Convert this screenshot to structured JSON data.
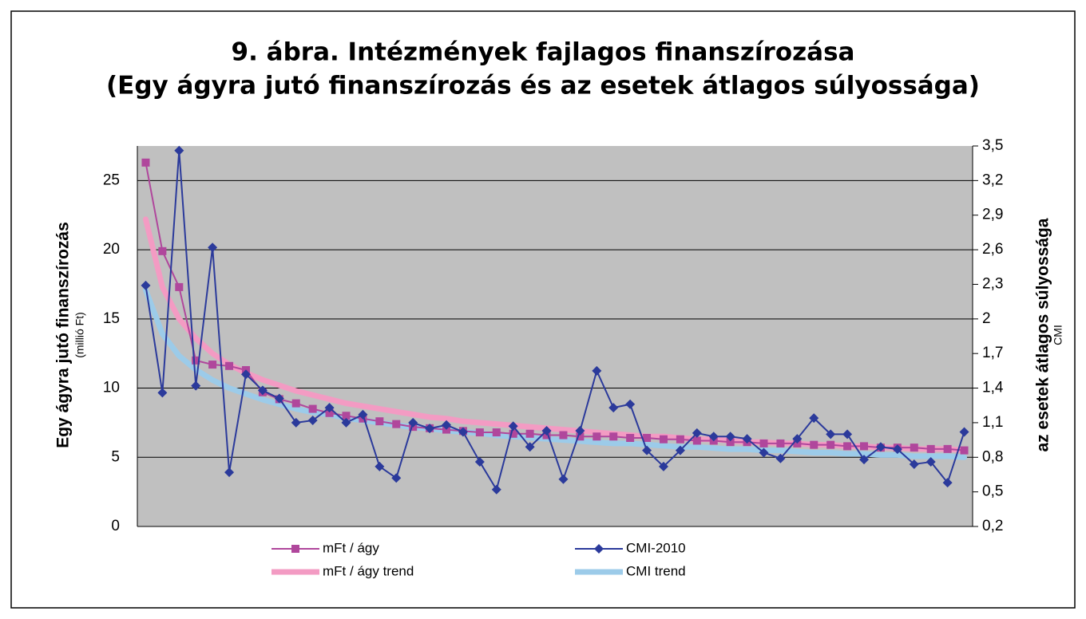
{
  "chart_data": {
    "type": "line",
    "title": "9. ábra. Intézmények fajlagos finanszírozása",
    "subtitle": "(Egy ágyra jutó finanszírozás és az esetek átlagos súlyossága)",
    "y_label": "Egy ágyra jutó finanszírozás",
    "y_unit": "(millió Ft)",
    "y2_label": "az esetek átlagos súlyossága",
    "y2_unit": "CMI",
    "categories": [
      null,
      null,
      null,
      null,
      null,
      null,
      null,
      null,
      null,
      null,
      null,
      null,
      null,
      null,
      null,
      null,
      null,
      null,
      null,
      null,
      null,
      null,
      null,
      null,
      null,
      null,
      null,
      null,
      null,
      null,
      null,
      null,
      null,
      null,
      null,
      null,
      null,
      null,
      null,
      null,
      null,
      null,
      null,
      null,
      null,
      null,
      null,
      null,
      null,
      null
    ],
    "ylim": [
      0,
      27.5
    ],
    "yticks": [
      0,
      5,
      10,
      15,
      20,
      25
    ],
    "y2lim": [
      0.2,
      3.5
    ],
    "y2ticks": [
      {
        "value": 0.2,
        "label": "0,2"
      },
      {
        "value": 0.5,
        "label": "0,5"
      },
      {
        "value": 0.8,
        "label": "0,8"
      },
      {
        "value": 1.1,
        "label": "1,1"
      },
      {
        "value": 1.4,
        "label": "1,4"
      },
      {
        "value": 1.7,
        "label": "1,7"
      },
      {
        "value": 2,
        "label": "2"
      },
      {
        "value": 2.3,
        "label": "2,3"
      },
      {
        "value": 2.6,
        "label": "2,6"
      },
      {
        "value": 2.9,
        "label": "2,9"
      },
      {
        "value": 3.2,
        "label": "3,2"
      },
      {
        "value": 3.5,
        "label": "3,5"
      }
    ],
    "grid": true,
    "plot_background": "#c0c0c0",
    "series": [
      {
        "name": "mFt / ágy",
        "color": "#b0479c",
        "marker": "square",
        "values": [
          26.3,
          19.9,
          17.3,
          12,
          11.7,
          11.6,
          11.3,
          9.7,
          9.2,
          8.9,
          8.5,
          8.2,
          8.0,
          7.8,
          7.6,
          7.4,
          7.2,
          7.1,
          7.0,
          6.9,
          6.8,
          6.8,
          6.7,
          6.7,
          6.6,
          6.6,
          6.5,
          6.5,
          6.5,
          6.4,
          6.4,
          6.3,
          6.3,
          6.2,
          6.2,
          6.1,
          6.1,
          6.0,
          6.0,
          6.0,
          5.9,
          5.9,
          5.8,
          5.8,
          5.7,
          5.7,
          5.7,
          5.6,
          5.6,
          5.5
        ]
      },
      {
        "name": "CMI-2010",
        "color": "#2b3a9b",
        "marker": "diamond",
        "axis": "y2",
        "values": [
          2.29,
          1.36,
          3.46,
          1.42,
          2.62,
          0.67,
          1.52,
          1.38,
          1.31,
          1.1,
          1.12,
          1.23,
          1.1,
          1.17,
          0.72,
          0.62,
          1.1,
          1.05,
          1.08,
          1.02,
          0.76,
          0.52,
          1.07,
          0.89,
          1.03,
          0.61,
          1.03,
          1.55,
          1.23,
          1.26,
          0.86,
          0.72,
          0.86,
          1.01,
          0.98,
          0.98,
          0.96,
          0.84,
          0.79,
          0.96,
          1.14,
          1.0,
          1.0,
          0.78,
          0.89,
          0.87,
          0.74,
          0.76,
          0.58,
          1.02
        ]
      },
      {
        "name": "mFt / ágy trend",
        "color": "#f39bc3",
        "marker": "none",
        "values": [
          22.2,
          17.3,
          15.0,
          13.6,
          12.5,
          11.7,
          11.1,
          10.6,
          10.2,
          9.8,
          9.5,
          9.2,
          8.9,
          8.7,
          8.5,
          8.3,
          8.1,
          7.9,
          7.8,
          7.6,
          7.5,
          7.4,
          7.3,
          7.2,
          7.1,
          7.0,
          6.9,
          6.8,
          6.7,
          6.6,
          6.5,
          6.5,
          6.4,
          6.3,
          6.3,
          6.2,
          6.1,
          6.1,
          6.0,
          6.0,
          5.9,
          5.9,
          5.8,
          5.8,
          5.7,
          5.7,
          5.6,
          5.6,
          5.6,
          5.5
        ]
      },
      {
        "name": "CMI trend",
        "color": "#9ccbe9",
        "marker": "none",
        "axis": "y2",
        "values": [
          2.25,
          1.87,
          1.68,
          1.56,
          1.47,
          1.4,
          1.35,
          1.3,
          1.26,
          1.22,
          1.19,
          1.17,
          1.14,
          1.12,
          1.1,
          1.08,
          1.06,
          1.05,
          1.03,
          1.02,
          1.01,
          0.99,
          0.98,
          0.97,
          0.96,
          0.95,
          0.94,
          0.93,
          0.92,
          0.92,
          0.91,
          0.9,
          0.89,
          0.89,
          0.88,
          0.87,
          0.87,
          0.86,
          0.86,
          0.85,
          0.84,
          0.84,
          0.83,
          0.83,
          0.82,
          0.82,
          0.81,
          0.81,
          0.81,
          0.8
        ]
      }
    ]
  }
}
